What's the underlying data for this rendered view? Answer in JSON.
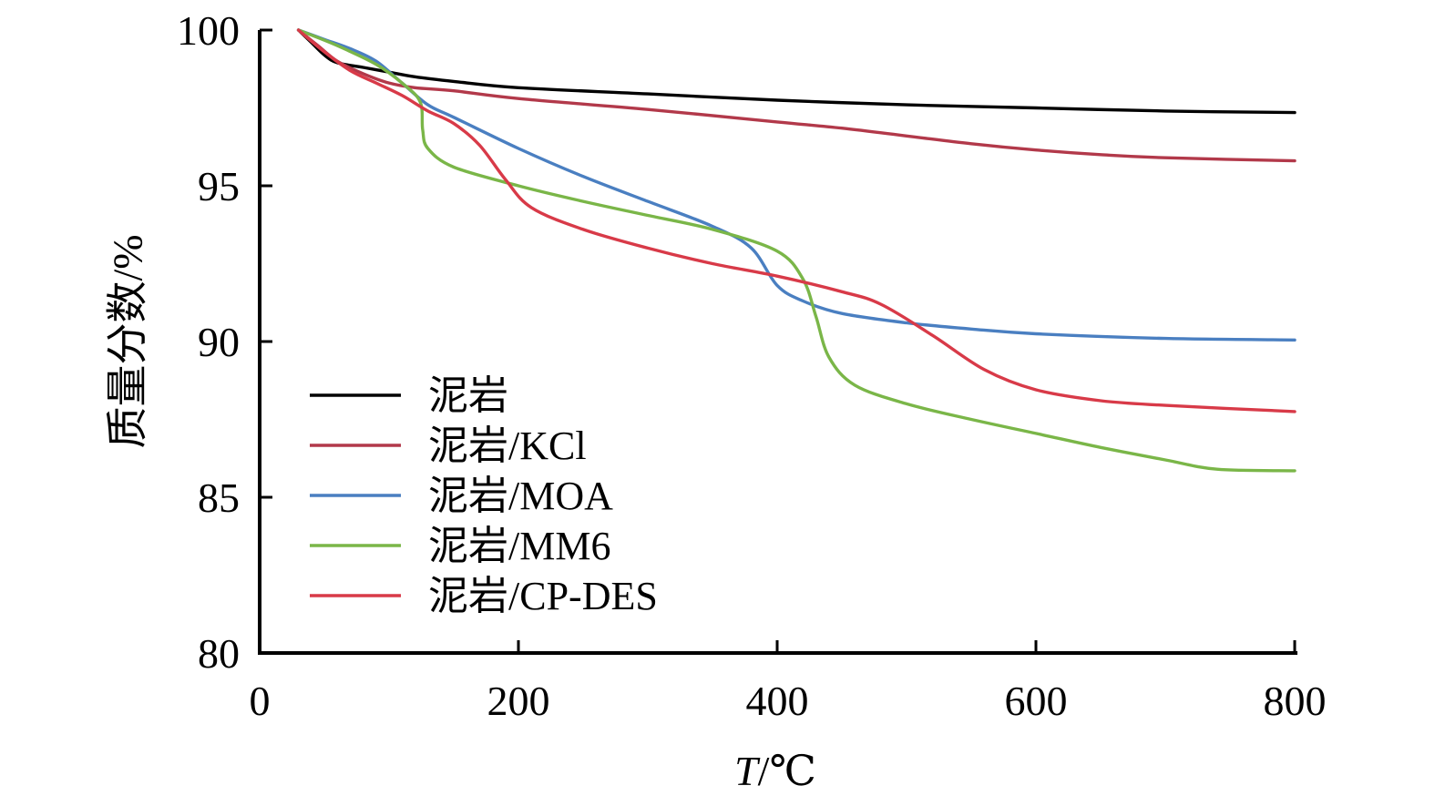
{
  "chart_data": {
    "type": "line",
    "xlabel_italic": "T",
    "xlabel_rest": "/℃",
    "ylabel": "质量分数/%",
    "xlim": [
      0,
      800
    ],
    "ylim": [
      80,
      100
    ],
    "xticks": [
      0,
      200,
      400,
      600,
      800
    ],
    "yticks": [
      80,
      85,
      90,
      95,
      100
    ],
    "grid": false,
    "legend_position": "lower-left",
    "series": [
      {
        "name": "泥岩",
        "color": "#000000",
        "points": [
          [
            30,
            100
          ],
          [
            40,
            99.6
          ],
          [
            50,
            99.2
          ],
          [
            60,
            98.95
          ],
          [
            80,
            98.8
          ],
          [
            100,
            98.65
          ],
          [
            120,
            98.5
          ],
          [
            150,
            98.35
          ],
          [
            200,
            98.15
          ],
          [
            300,
            97.95
          ],
          [
            400,
            97.75
          ],
          [
            500,
            97.6
          ],
          [
            600,
            97.5
          ],
          [
            700,
            97.4
          ],
          [
            800,
            97.35
          ]
        ]
      },
      {
        "name": "泥岩/KCl",
        "color": "#b2394a",
        "points": [
          [
            30,
            100
          ],
          [
            45,
            99.5
          ],
          [
            60,
            99.0
          ],
          [
            80,
            98.6
          ],
          [
            100,
            98.3
          ],
          [
            120,
            98.15
          ],
          [
            150,
            98.05
          ],
          [
            200,
            97.8
          ],
          [
            300,
            97.45
          ],
          [
            400,
            97.05
          ],
          [
            450,
            96.85
          ],
          [
            500,
            96.6
          ],
          [
            550,
            96.35
          ],
          [
            600,
            96.15
          ],
          [
            650,
            96.0
          ],
          [
            700,
            95.9
          ],
          [
            800,
            95.8
          ]
        ]
      },
      {
        "name": "泥岩/MOA",
        "color": "#4a7fc1",
        "points": [
          [
            30,
            100
          ],
          [
            50,
            99.7
          ],
          [
            70,
            99.4
          ],
          [
            90,
            99.0
          ],
          [
            110,
            98.3
          ],
          [
            130,
            97.6
          ],
          [
            150,
            97.2
          ],
          [
            200,
            96.2
          ],
          [
            250,
            95.3
          ],
          [
            300,
            94.5
          ],
          [
            350,
            93.7
          ],
          [
            380,
            93.0
          ],
          [
            400,
            91.8
          ],
          [
            420,
            91.3
          ],
          [
            450,
            90.9
          ],
          [
            500,
            90.6
          ],
          [
            550,
            90.4
          ],
          [
            600,
            90.25
          ],
          [
            700,
            90.1
          ],
          [
            800,
            90.05
          ]
        ]
      },
      {
        "name": "泥岩/MM6",
        "color": "#7ab648",
        "points": [
          [
            30,
            100
          ],
          [
            60,
            99.5
          ],
          [
            90,
            98.9
          ],
          [
            110,
            98.3
          ],
          [
            124,
            97.7
          ],
          [
            126,
            96.8
          ],
          [
            130,
            96.2
          ],
          [
            150,
            95.6
          ],
          [
            200,
            95.0
          ],
          [
            250,
            94.5
          ],
          [
            300,
            94.05
          ],
          [
            350,
            93.6
          ],
          [
            400,
            92.9
          ],
          [
            420,
            92.0
          ],
          [
            430,
            90.8
          ],
          [
            440,
            89.5
          ],
          [
            460,
            88.6
          ],
          [
            500,
            88.0
          ],
          [
            550,
            87.5
          ],
          [
            600,
            87.05
          ],
          [
            650,
            86.6
          ],
          [
            700,
            86.2
          ],
          [
            740,
            85.9
          ],
          [
            800,
            85.85
          ]
        ]
      },
      {
        "name": "泥岩/CP-DES",
        "color": "#d83a48",
        "points": [
          [
            30,
            100
          ],
          [
            50,
            99.3
          ],
          [
            70,
            98.7
          ],
          [
            90,
            98.3
          ],
          [
            110,
            97.9
          ],
          [
            130,
            97.4
          ],
          [
            150,
            97.0
          ],
          [
            170,
            96.3
          ],
          [
            190,
            95.2
          ],
          [
            210,
            94.3
          ],
          [
            250,
            93.6
          ],
          [
            300,
            93.0
          ],
          [
            350,
            92.5
          ],
          [
            400,
            92.1
          ],
          [
            450,
            91.6
          ],
          [
            480,
            91.2
          ],
          [
            520,
            90.2
          ],
          [
            560,
            89.1
          ],
          [
            600,
            88.45
          ],
          [
            650,
            88.1
          ],
          [
            700,
            87.95
          ],
          [
            800,
            87.75
          ]
        ]
      }
    ]
  }
}
